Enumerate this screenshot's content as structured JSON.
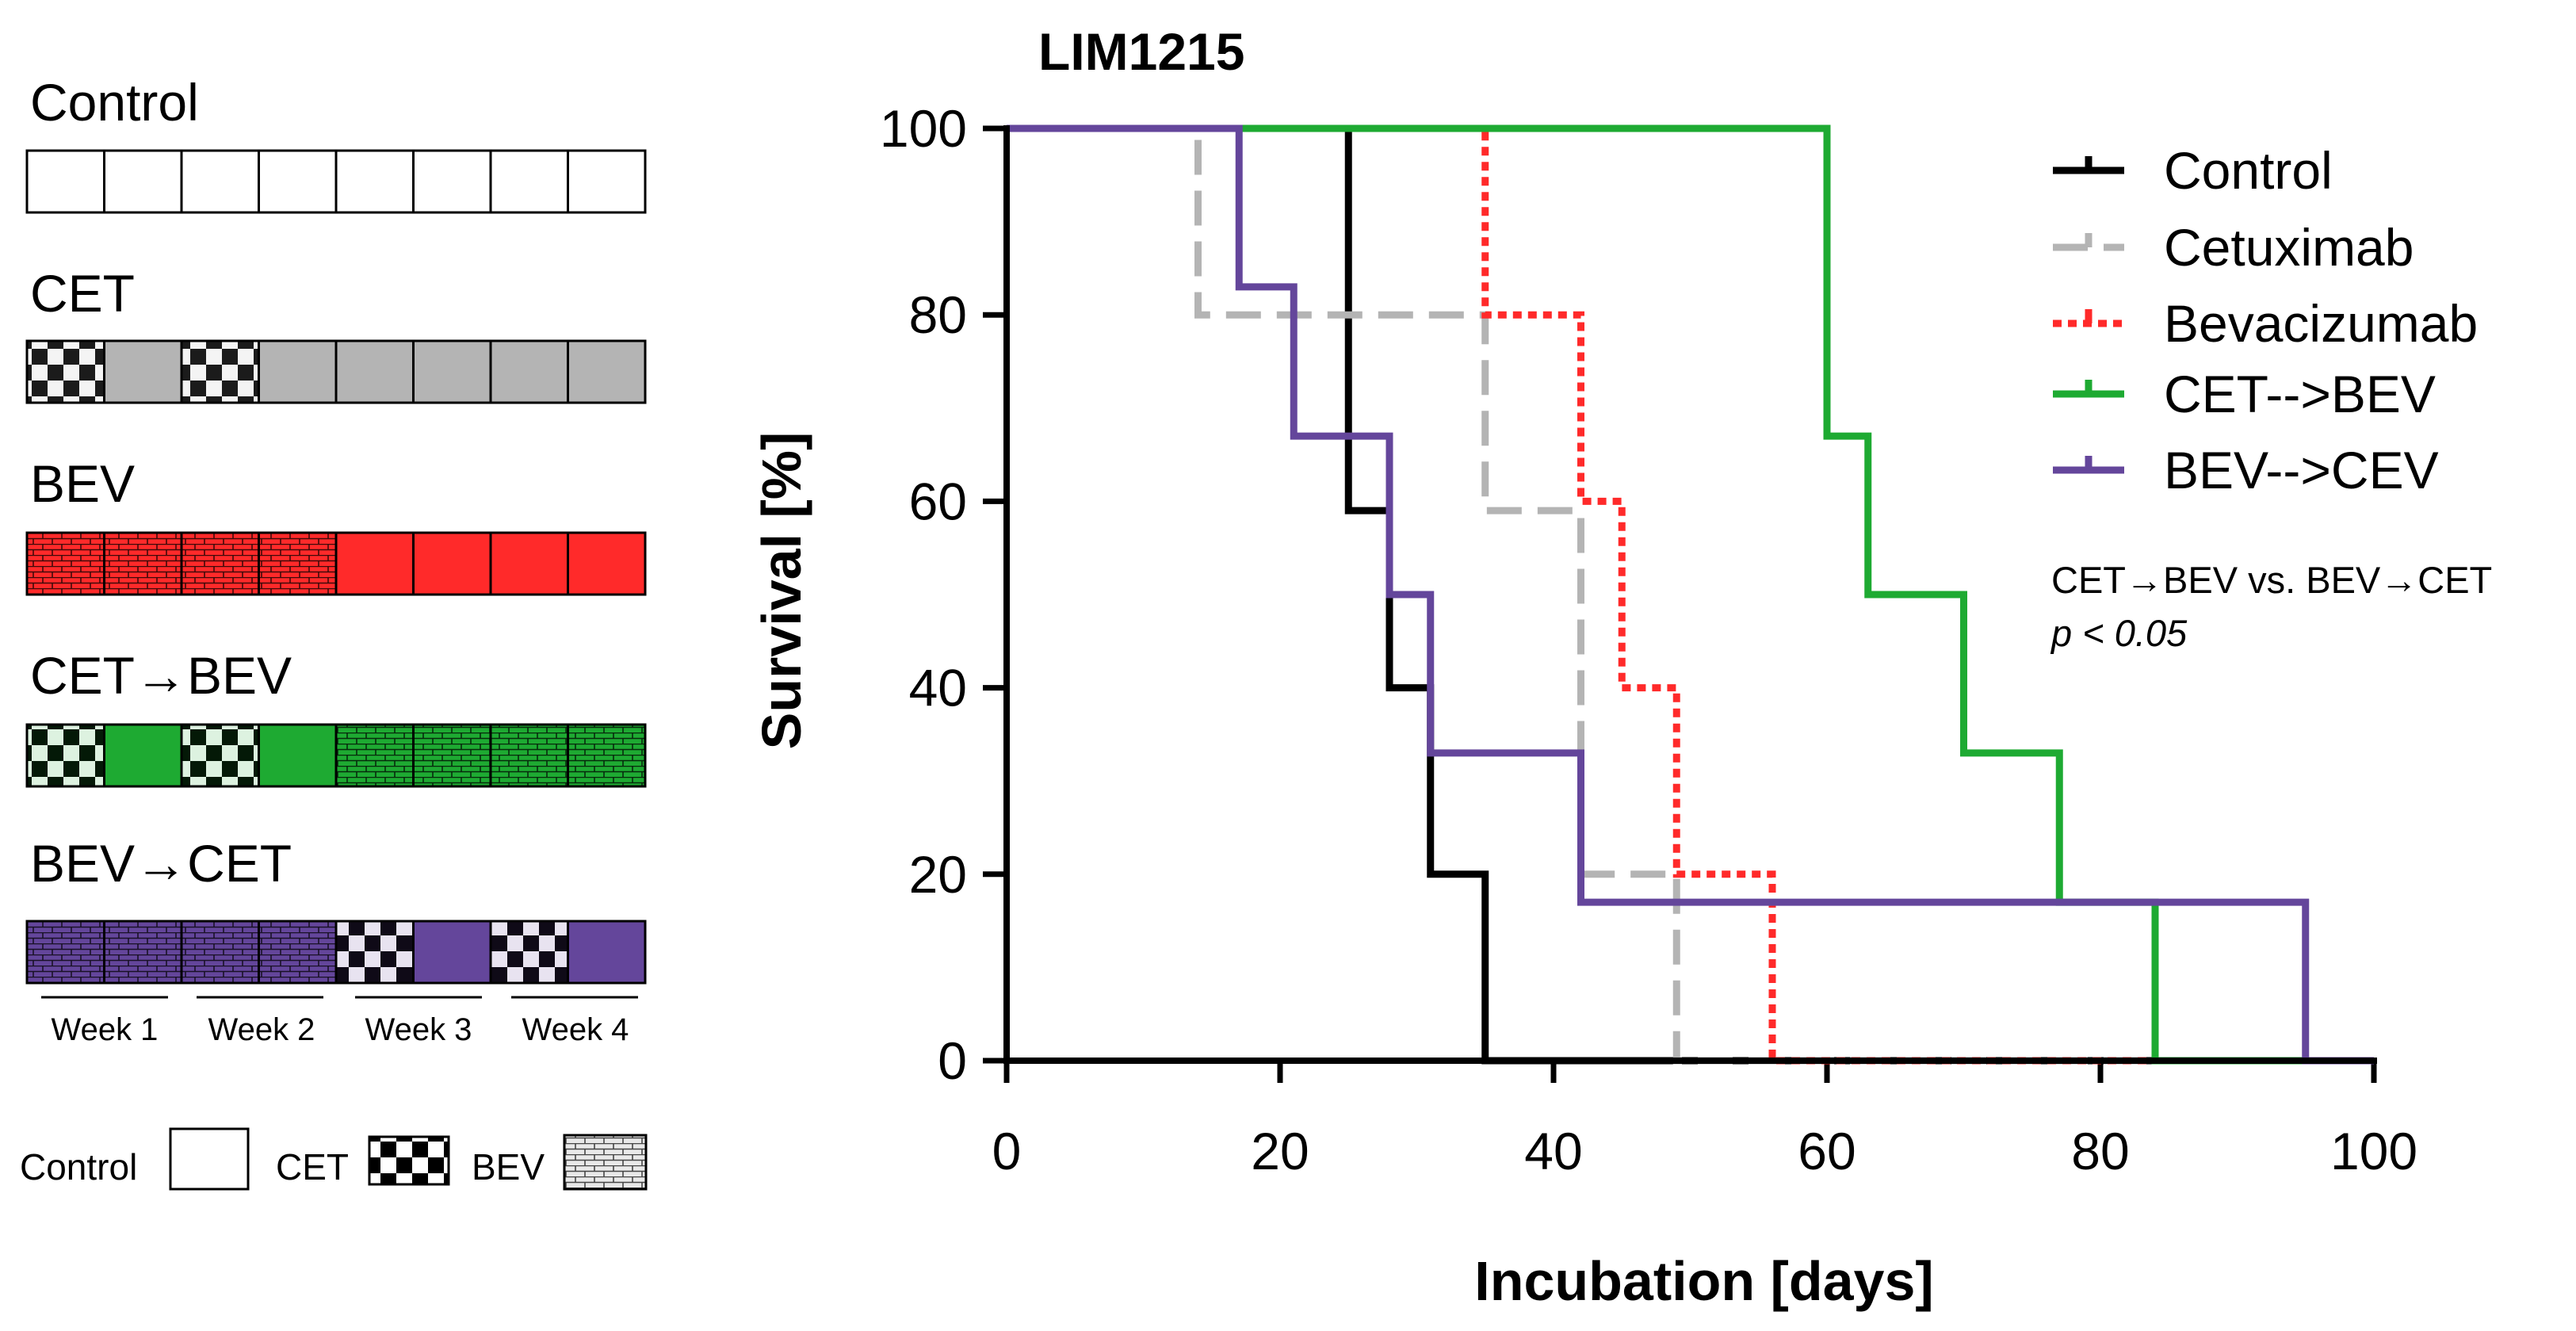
{
  "colors": {
    "control": "#000000",
    "cetuximab": "#b4b4b4",
    "bevacizumab": "#ff2a2a",
    "cet_bev": "#1eaa32",
    "bev_cet": "#64469b",
    "cet_fill": "#b4b4b4",
    "bev_fill": "#ff2a2a",
    "cetbev_fill": "#1eaa32",
    "bevcet_fill": "#64469b"
  },
  "schedule": {
    "rows": [
      {
        "label": "Control",
        "pattern": [
          "e",
          "e",
          "e",
          "e",
          "e",
          "e",
          "e",
          "e"
        ],
        "color_key": "control"
      },
      {
        "label": "CET",
        "pattern": [
          "k",
          "s",
          "k",
          "s",
          "s",
          "s",
          "s",
          "s"
        ],
        "color_key": "cet_fill"
      },
      {
        "label": "BEV",
        "pattern": [
          "b",
          "b",
          "b",
          "b",
          "s",
          "s",
          "s",
          "s"
        ],
        "color_key": "bev_fill"
      },
      {
        "label": "CET→BEV",
        "pattern": [
          "k",
          "s",
          "k",
          "s",
          "b",
          "b",
          "b",
          "b"
        ],
        "color_key": "cetbev_fill"
      },
      {
        "label": "BEV→CET",
        "pattern": [
          "b",
          "b",
          "b",
          "b",
          "k",
          "s",
          "k",
          "s"
        ],
        "color_key": "bevcet_fill"
      }
    ],
    "weeks": [
      "Week 1",
      "Week 2",
      "Week 3",
      "Week 4"
    ],
    "key": {
      "control": "Control",
      "cet": "CET",
      "bev": "BEV"
    }
  },
  "chart_data": {
    "type": "line",
    "step": true,
    "title": "LIM1215",
    "xlabel": "Incubation [days]",
    "ylabel": "Survival [%]",
    "xlim": [
      0,
      100
    ],
    "ylim": [
      0,
      100
    ],
    "xticks": [
      0,
      20,
      40,
      60,
      80,
      100
    ],
    "yticks": [
      0,
      20,
      40,
      60,
      80,
      100
    ],
    "series": [
      {
        "name": "Control",
        "color_key": "control",
        "dash": "solid",
        "x": [
          0,
          24,
          25,
          28,
          31,
          35
        ],
        "y": [
          100,
          100,
          59,
          40,
          20,
          0
        ]
      },
      {
        "name": "Cetuximab",
        "color_key": "cetuximab",
        "dash": "dashed",
        "x": [
          0,
          14,
          35,
          42,
          49
        ],
        "y": [
          100,
          80,
          59,
          20,
          0
        ]
      },
      {
        "name": "Bevacizumab",
        "color_key": "bevacizumab",
        "dash": "dotted",
        "x": [
          0,
          35,
          42,
          45,
          49,
          56
        ],
        "y": [
          100,
          80,
          60,
          40,
          20,
          0
        ]
      },
      {
        "name": "CET-->BEV",
        "color_key": "cet_bev",
        "dash": "solid",
        "x": [
          0,
          60,
          63,
          70,
          77,
          84
        ],
        "y": [
          100,
          67,
          50,
          33,
          17,
          0
        ]
      },
      {
        "name": "BEV-->CEV",
        "color_key": "bev_cet",
        "dash": "solid",
        "x": [
          0,
          17,
          21,
          28,
          31,
          42,
          95
        ],
        "y": [
          100,
          83,
          67,
          50,
          33,
          17,
          0
        ]
      }
    ],
    "annotation": {
      "line1": "CET→BEV vs. BEV→CET",
      "line2": "p < 0.05"
    }
  }
}
